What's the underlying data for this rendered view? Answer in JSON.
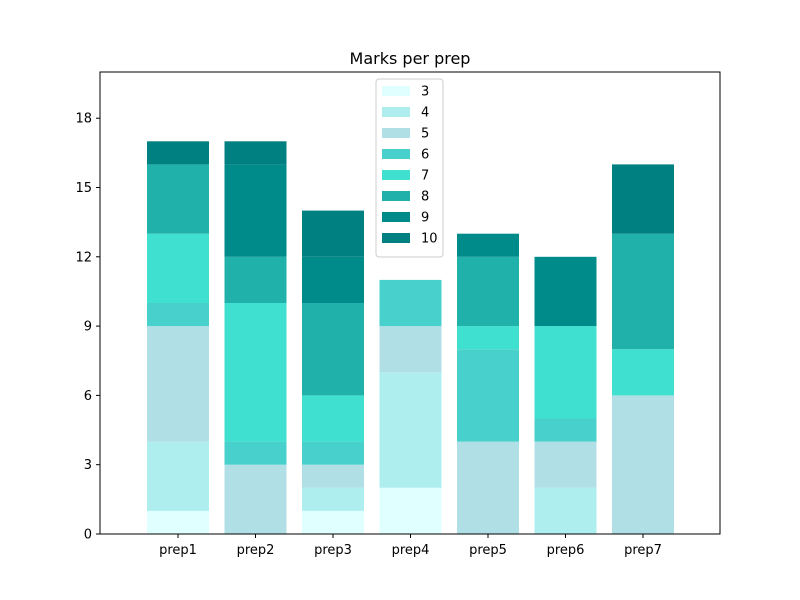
{
  "chart_data": {
    "type": "bar",
    "stacked": true,
    "title": "Marks per prep",
    "xlabel": "",
    "ylabel": "",
    "ylim": [
      0,
      20
    ],
    "yticks": [
      0,
      3,
      6,
      9,
      12,
      15,
      18
    ],
    "categories": [
      "prep1",
      "prep2",
      "prep3",
      "prep4",
      "prep5",
      "prep6",
      "prep7"
    ],
    "legend_position": "upper-center",
    "series": [
      {
        "name": "3",
        "color": "#e0ffff",
        "values": [
          1,
          0,
          1,
          2,
          0,
          0,
          0
        ]
      },
      {
        "name": "4",
        "color": "#afeeee",
        "values": [
          3,
          0,
          1,
          5,
          0,
          2,
          0
        ]
      },
      {
        "name": "5",
        "color": "#b0e0e6",
        "values": [
          5,
          3,
          1,
          2,
          4,
          2,
          6
        ]
      },
      {
        "name": "6",
        "color": "#48d1cc",
        "values": [
          1,
          1,
          1,
          2,
          4,
          1,
          0
        ]
      },
      {
        "name": "7",
        "color": "#40e0d0",
        "values": [
          3,
          6,
          2,
          0,
          1,
          4,
          2
        ]
      },
      {
        "name": "8",
        "color": "#20b2aa",
        "values": [
          3,
          2,
          4,
          0,
          3,
          0,
          5
        ]
      },
      {
        "name": "9",
        "color": "#008b8b",
        "values": [
          0,
          4,
          2,
          0,
          1,
          3,
          0
        ]
      },
      {
        "name": "10",
        "color": "#008080",
        "values": [
          1,
          1,
          2,
          0,
          0,
          0,
          3
        ]
      }
    ]
  }
}
